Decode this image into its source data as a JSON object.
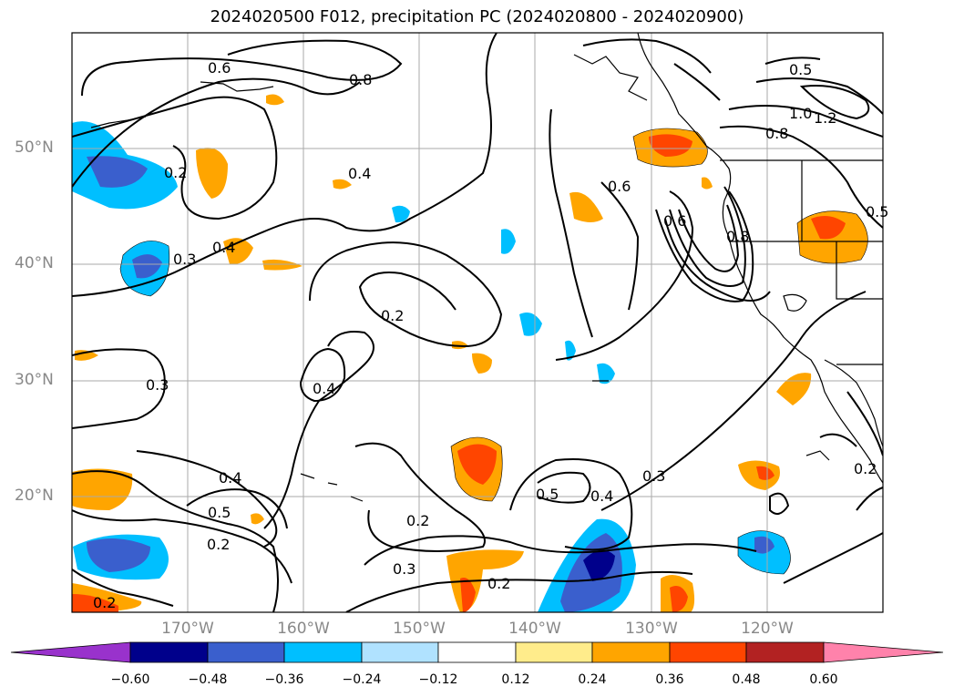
{
  "title": "2024020500 F012, precipitation PC (2024020800 - 2024020900)",
  "map": {
    "lat_labels": [
      "50°N",
      "40°N",
      "30°N",
      "20°N"
    ],
    "lon_labels": [
      "170°W",
      "160°W",
      "150°W",
      "140°W",
      "130°W",
      "120°W"
    ],
    "contour_labels": [
      "0.6",
      "0.8",
      "0.2",
      "0.4",
      "0.3",
      "0.4",
      "0.6",
      "0.6",
      "0.8",
      "0.5",
      "0.8",
      "1.0",
      "1.2",
      "0.5",
      "0.2",
      "0.3",
      "0.4",
      "0.4",
      "0.5",
      "0.2",
      "0.2",
      "0.3",
      "0.2",
      "0.5",
      "0.4",
      "0.3",
      "0.2",
      "0.2"
    ]
  },
  "colorbar": {
    "ticks": [
      "−0.60",
      "−0.48",
      "−0.36",
      "−0.24",
      "−0.12",
      "0.12",
      "0.24",
      "0.36",
      "0.48",
      "0.60"
    ],
    "colors": [
      "#9932cc",
      "#00008b",
      "#3a5fcd",
      "#00bfff",
      "#b0e2ff",
      "#ffffff",
      "#ffec8b",
      "#ffa500",
      "#ff4500",
      "#b22222",
      "#ff82ab"
    ]
  }
}
